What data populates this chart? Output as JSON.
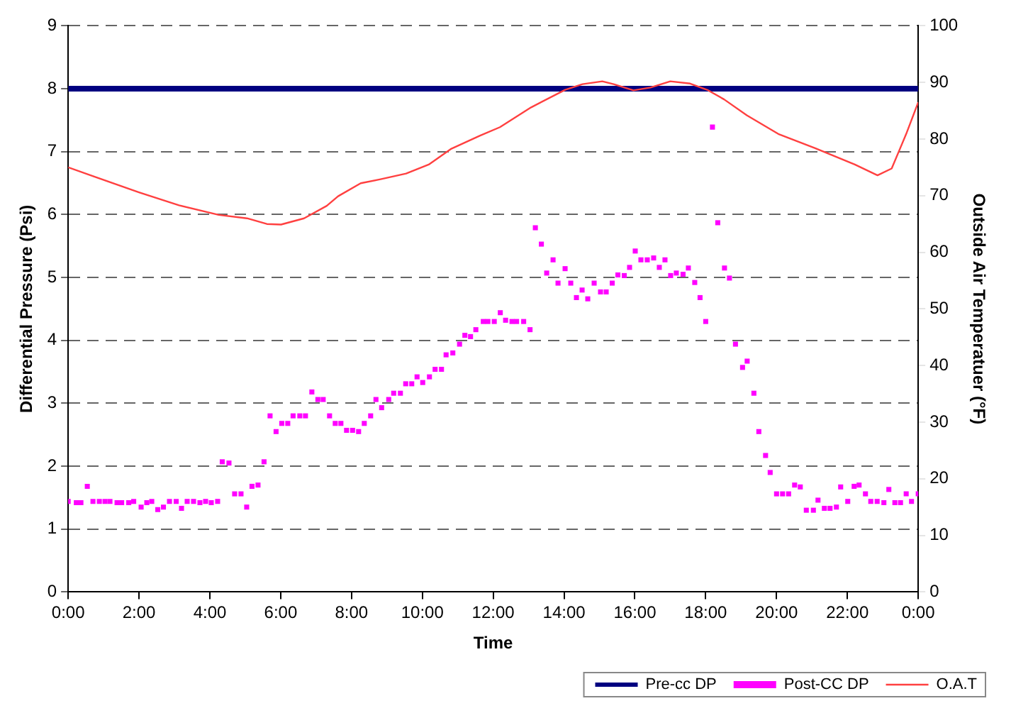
{
  "chart_data": {
    "type": "line",
    "xlabel": "Time",
    "ylabel": "Differential Pressure (Psi)",
    "y2label": "Outside Air Temperatuer (°F)",
    "xlim": [
      0,
      24
    ],
    "xticks": [
      {
        "value": 0,
        "label": "0:00"
      },
      {
        "value": 2,
        "label": "2:00"
      },
      {
        "value": 4,
        "label": "4:00"
      },
      {
        "value": 6,
        "label": "6:00"
      },
      {
        "value": 8,
        "label": "8:00"
      },
      {
        "value": 10,
        "label": "10:00"
      },
      {
        "value": 12,
        "label": "12:00"
      },
      {
        "value": 14,
        "label": "14:00"
      },
      {
        "value": 16,
        "label": "16:00"
      },
      {
        "value": 18,
        "label": "18:00"
      },
      {
        "value": 20,
        "label": "20:00"
      },
      {
        "value": 22,
        "label": "22:00"
      },
      {
        "value": 24,
        "label": "0:00"
      }
    ],
    "ylim": [
      0,
      9
    ],
    "yticks": [
      0,
      1,
      2,
      3,
      4,
      5,
      6,
      7,
      8,
      9
    ],
    "y2lim": [
      0,
      100
    ],
    "y2ticks": [
      0,
      10,
      20,
      30,
      40,
      50,
      60,
      70,
      80,
      90,
      100
    ],
    "grid": "y",
    "legend": "bottom right",
    "series": [
      {
        "name": "Pre-cc DP",
        "color": "#000080",
        "marker": "none",
        "line_style": "solid",
        "x": [
          0,
          24
        ],
        "values": [
          8,
          8
        ]
      },
      {
        "name": "Post-CC DP",
        "type": "scatter",
        "color": "#ff00ff",
        "marker": "square",
        "x": [
          0.0,
          0.23,
          0.36,
          0.54,
          0.7,
          0.88,
          1.04,
          1.18,
          1.38,
          1.51,
          1.71,
          1.85,
          2.06,
          2.22,
          2.36,
          2.53,
          2.69,
          2.86,
          3.05,
          3.2,
          3.36,
          3.54,
          3.72,
          3.88,
          4.04,
          4.22,
          4.35,
          4.54,
          4.7,
          4.88,
          5.04,
          5.19,
          5.36,
          5.53,
          5.7,
          5.87,
          6.03,
          6.2,
          6.35,
          6.54,
          6.7,
          6.88,
          7.05,
          7.2,
          7.38,
          7.54,
          7.7,
          7.86,
          8.03,
          8.2,
          8.36,
          8.54,
          8.69,
          8.85,
          9.05,
          9.19,
          9.38,
          9.53,
          9.7,
          9.85,
          10.01,
          10.2,
          10.36,
          10.54,
          10.67,
          10.86,
          11.05,
          11.2,
          11.36,
          11.51,
          11.72,
          11.85,
          12.03,
          12.2,
          12.35,
          12.53,
          12.66,
          12.86,
          13.04,
          13.19,
          13.36,
          13.51,
          13.69,
          13.83,
          14.03,
          14.19,
          14.35,
          14.51,
          14.67,
          14.85,
          15.03,
          15.19,
          15.36,
          15.52,
          15.7,
          15.85,
          16.01,
          16.17,
          16.35,
          16.53,
          16.69,
          16.85,
          17.01,
          17.17,
          17.36,
          17.51,
          17.69,
          17.84,
          18.0,
          18.19,
          18.34,
          18.53,
          18.67,
          18.84,
          19.04,
          19.17,
          19.36,
          19.5,
          19.69,
          19.82,
          20.0,
          20.17,
          20.34,
          20.51,
          20.67,
          20.84,
          21.04,
          21.17,
          21.35,
          21.51,
          21.69,
          21.81,
          22.01,
          22.19,
          22.33,
          22.51,
          22.66,
          22.84,
          23.03,
          23.17,
          23.34,
          23.5,
          23.66,
          23.81,
          24.0
        ],
        "values": [
          1.44,
          1.42,
          1.42,
          1.68,
          1.44,
          1.44,
          1.44,
          1.44,
          1.42,
          1.42,
          1.42,
          1.44,
          1.35,
          1.42,
          1.44,
          1.31,
          1.35,
          1.44,
          1.44,
          1.33,
          1.44,
          1.44,
          1.42,
          1.44,
          1.42,
          1.44,
          2.07,
          2.05,
          1.56,
          1.56,
          1.35,
          1.68,
          1.7,
          2.07,
          2.8,
          2.55,
          2.68,
          2.68,
          2.8,
          2.8,
          2.8,
          3.18,
          3.06,
          3.06,
          2.8,
          2.68,
          2.68,
          2.57,
          2.57,
          2.55,
          2.68,
          2.8,
          3.06,
          2.93,
          3.06,
          3.16,
          3.16,
          3.31,
          3.31,
          3.42,
          3.33,
          3.42,
          3.54,
          3.54,
          3.77,
          3.8,
          3.94,
          4.08,
          4.06,
          4.17,
          4.3,
          4.3,
          4.3,
          4.44,
          4.32,
          4.3,
          4.3,
          4.3,
          4.17,
          5.79,
          5.53,
          5.07,
          5.28,
          4.91,
          5.14,
          4.91,
          4.68,
          4.8,
          4.66,
          4.91,
          4.77,
          4.77,
          4.91,
          5.04,
          5.03,
          5.16,
          5.42,
          5.28,
          5.28,
          5.31,
          5.16,
          5.28,
          5.03,
          5.07,
          5.05,
          5.15,
          4.92,
          4.68,
          4.3,
          7.39,
          5.87,
          5.15,
          4.99,
          3.94,
          3.57,
          3.67,
          3.16,
          2.55,
          2.17,
          1.9,
          1.56,
          1.56,
          1.56,
          1.7,
          1.67,
          1.3,
          1.3,
          1.46,
          1.33,
          1.33,
          1.35,
          1.67,
          1.44,
          1.68,
          1.7,
          1.56,
          1.44,
          1.44,
          1.42,
          1.63,
          1.42,
          1.42,
          1.56,
          1.44,
          1.56
        ]
      },
      {
        "name": "O.A.T",
        "axis": "y2",
        "color": "#ff4040",
        "marker": "none",
        "line_style": "solid",
        "x": [
          0.0,
          0.72,
          2.0,
          3.13,
          4.25,
          5.05,
          5.61,
          6.01,
          6.66,
          7.3,
          7.62,
          8.26,
          8.82,
          9.54,
          10.18,
          10.82,
          11.63,
          12.19,
          13.07,
          14.03,
          14.52,
          15.08,
          15.4,
          15.96,
          16.44,
          17.0,
          17.56,
          18.04,
          18.52,
          19.16,
          20.05,
          21.09,
          22.21,
          22.85,
          23.25,
          23.66,
          24.0
        ],
        "values": [
          75.0,
          73.4,
          70.6,
          68.3,
          66.6,
          66.0,
          65.0,
          64.9,
          66.0,
          68.2,
          69.9,
          72.2,
          72.9,
          73.9,
          75.5,
          78.3,
          80.6,
          82.1,
          85.6,
          88.7,
          89.7,
          90.2,
          89.7,
          88.6,
          89.1,
          90.2,
          89.8,
          88.7,
          87.0,
          84.2,
          80.9,
          78.4,
          75.5,
          73.6,
          74.8,
          80.9,
          86.5
        ]
      }
    ]
  }
}
